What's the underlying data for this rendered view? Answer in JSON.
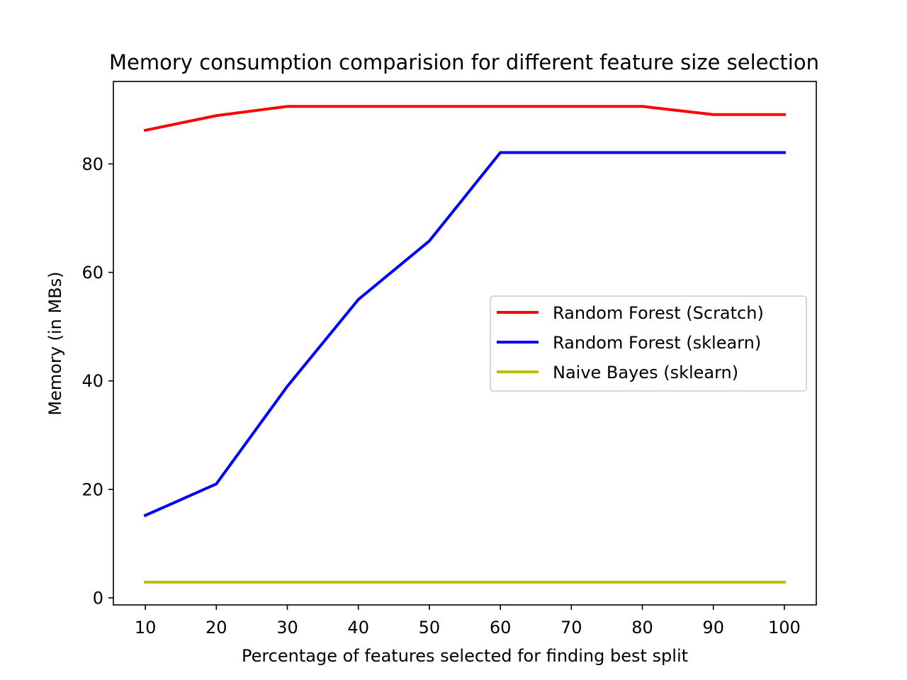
{
  "chart_data": {
    "type": "line",
    "title": "Memory consumption comparision for different feature size selection",
    "xlabel": "Percentage of features selected for finding best split",
    "ylabel": "Memory (in MBs)",
    "x": [
      10,
      20,
      30,
      40,
      50,
      60,
      70,
      80,
      90,
      100
    ],
    "xlim": [
      5.5,
      104.5
    ],
    "ylim": [
      -1.3,
      95.2
    ],
    "xticks": [
      10,
      20,
      30,
      40,
      50,
      60,
      70,
      80,
      90,
      100
    ],
    "yticks": [
      0,
      20,
      40,
      60,
      80
    ],
    "grid": false,
    "legend_position": "center-right",
    "series": [
      {
        "name": "Random Forest (Scratch)",
        "color": "#ff0000",
        "values": [
          86.2,
          88.9,
          90.6,
          90.6,
          90.6,
          90.6,
          90.6,
          90.6,
          89.1,
          89.1
        ]
      },
      {
        "name": "Random Forest (sklearn)",
        "color": "#0000ff",
        "values": [
          15.2,
          21.0,
          39.0,
          55.0,
          65.8,
          82.1,
          82.1,
          82.1,
          82.1,
          82.1
        ]
      },
      {
        "name": "Naive Bayes (sklearn)",
        "color": "#bfbf00",
        "values": [
          2.9,
          2.9,
          2.9,
          2.9,
          2.9,
          2.9,
          2.9,
          2.9,
          2.9,
          2.9
        ]
      }
    ]
  }
}
